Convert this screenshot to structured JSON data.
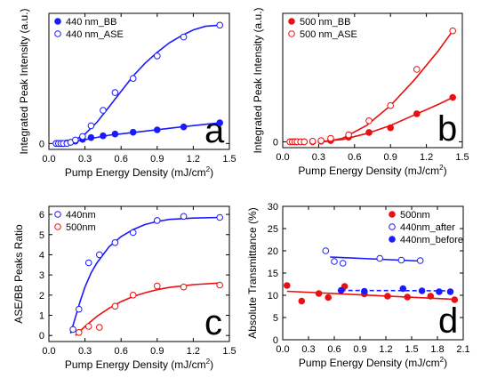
{
  "chart_data": [
    {
      "type": "scatter",
      "panel_letter": "a",
      "xlabel": "Pump Energy Density (mJ/cm",
      "xlabel_sup": "2",
      "xlabel_end": ")",
      "ylabel": "Integrated Peak Intensity (a.u.)",
      "xlim": [
        0,
        1.5
      ],
      "ylim": [
        -0.05,
        1.1
      ],
      "x_ticks": [
        0.0,
        0.3,
        0.6,
        0.9,
        1.2,
        1.5
      ],
      "x_tick_labels": [
        "0.0",
        "0.3",
        "0.6",
        "0.9",
        "1.2",
        "1.5"
      ],
      "y_ticks": [
        0
      ],
      "y_tick_labels": [
        "0"
      ],
      "legend_position": "top-left",
      "series": [
        {
          "name": "440 nm_BB",
          "color": "#1a1aff",
          "marker": "filled",
          "x": [
            0.06,
            0.08,
            0.1,
            0.12,
            0.15,
            0.18,
            0.22,
            0.28,
            0.35,
            0.45,
            0.55,
            0.7,
            0.9,
            1.12,
            1.42
          ],
          "y": [
            0.0,
            0.0,
            0.0,
            0.0,
            0.005,
            0.01,
            0.02,
            0.035,
            0.05,
            0.065,
            0.08,
            0.095,
            0.115,
            0.14,
            0.175
          ],
          "fit": [
            [
              0.05,
              0.0
            ],
            [
              0.2,
              0.015
            ],
            [
              0.5,
              0.07
            ],
            [
              0.8,
              0.105
            ],
            [
              1.1,
              0.14
            ],
            [
              1.42,
              0.175
            ]
          ]
        },
        {
          "name": "440 nm_ASE",
          "color": "#1a1aff",
          "marker": "open",
          "x": [
            0.06,
            0.08,
            0.1,
            0.12,
            0.15,
            0.18,
            0.22,
            0.28,
            0.35,
            0.45,
            0.55,
            0.7,
            0.9,
            1.12,
            1.42
          ],
          "y": [
            0.0,
            0.0,
            0.0,
            0.0,
            0.0,
            0.01,
            0.03,
            0.06,
            0.15,
            0.28,
            0.43,
            0.55,
            0.74,
            0.9,
            1.0
          ],
          "fit": [
            [
              0.1,
              0.0
            ],
            [
              0.2,
              0.02
            ],
            [
              0.3,
              0.08
            ],
            [
              0.4,
              0.18
            ],
            [
              0.5,
              0.31
            ],
            [
              0.6,
              0.44
            ],
            [
              0.7,
              0.57
            ],
            [
              0.8,
              0.68
            ],
            [
              0.9,
              0.77
            ],
            [
              1.0,
              0.85
            ],
            [
              1.1,
              0.91
            ],
            [
              1.2,
              0.96
            ],
            [
              1.3,
              0.99
            ],
            [
              1.42,
              1.0
            ]
          ]
        }
      ]
    },
    {
      "type": "scatter",
      "panel_letter": "b",
      "xlabel": "Pump Energy Density (mJ/cm",
      "xlabel_sup": "2",
      "xlabel_end": ")",
      "ylabel": "Integrated Peak Intensity (a.u.)",
      "xlim": [
        0,
        1.5
      ],
      "ylim": [
        -0.05,
        1.1
      ],
      "x_ticks": [
        0.0,
        0.3,
        0.6,
        0.9,
        1.2,
        1.5
      ],
      "x_tick_labels": [
        "0.0",
        "0.3",
        "0.6",
        "0.9",
        "1.2",
        "1.5"
      ],
      "y_ticks": [
        0
      ],
      "y_tick_labels": [
        "0"
      ],
      "legend_position": "top-left",
      "series": [
        {
          "name": "500 nm_BB",
          "color": "#e81010",
          "marker": "filled",
          "x": [
            0.06,
            0.08,
            0.1,
            0.12,
            0.15,
            0.18,
            0.25,
            0.32,
            0.4,
            0.55,
            0.72,
            0.9,
            1.12,
            1.42
          ],
          "y": [
            0.0,
            0.0,
            0.0,
            0.0,
            0.0,
            0.0,
            0.0,
            0.005,
            0.01,
            0.04,
            0.08,
            0.12,
            0.24,
            0.38
          ],
          "fit": [
            [
              0.3,
              0.0
            ],
            [
              0.5,
              0.02
            ],
            [
              0.7,
              0.07
            ],
            [
              0.9,
              0.14
            ],
            [
              1.1,
              0.23
            ],
            [
              1.3,
              0.32
            ],
            [
              1.42,
              0.38
            ]
          ]
        },
        {
          "name": "500 nm_ASE",
          "color": "#e81010",
          "marker": "open",
          "x": [
            0.06,
            0.08,
            0.1,
            0.12,
            0.15,
            0.18,
            0.25,
            0.32,
            0.4,
            0.55,
            0.72,
            0.9,
            1.12,
            1.42
          ],
          "y": [
            0.0,
            0.0,
            0.0,
            0.0,
            0.0,
            0.0,
            0.005,
            0.01,
            0.03,
            0.06,
            0.18,
            0.31,
            0.62,
            0.95
          ],
          "fit": [
            [
              0.35,
              0.0
            ],
            [
              0.5,
              0.03
            ],
            [
              0.7,
              0.14
            ],
            [
              0.9,
              0.31
            ],
            [
              1.1,
              0.53
            ],
            [
              1.3,
              0.78
            ],
            [
              1.42,
              0.95
            ]
          ]
        }
      ]
    },
    {
      "type": "scatter",
      "panel_letter": "c",
      "xlabel": "Pump Energy Density (mJ/cm",
      "xlabel_sup": "2",
      "xlabel_end": ")",
      "ylabel": "ASE/BB Peaks Ratio",
      "xlim": [
        0,
        1.5
      ],
      "ylim": [
        -0.3,
        6.4
      ],
      "x_ticks": [
        0.0,
        0.3,
        0.6,
        0.9,
        1.2,
        1.5
      ],
      "x_tick_labels": [
        "0.0",
        "0.3",
        "0.6",
        "0.9",
        "1.2",
        "1.5"
      ],
      "y_ticks": [
        0,
        1,
        2,
        3,
        4,
        5,
        6
      ],
      "y_tick_labels": [
        "0",
        "1",
        "2",
        "3",
        "4",
        "5",
        "6"
      ],
      "legend_position": "top-left",
      "series": [
        {
          "name": "440nm",
          "color": "#1a1aff",
          "marker": "open",
          "x": [
            0.2,
            0.25,
            0.33,
            0.42,
            0.55,
            0.7,
            0.9,
            1.12,
            1.42
          ],
          "y": [
            0.3,
            1.3,
            3.6,
            4.0,
            4.6,
            5.1,
            5.7,
            5.9,
            5.85
          ],
          "fit": [
            [
              0.18,
              0.1
            ],
            [
              0.22,
              0.9
            ],
            [
              0.26,
              1.7
            ],
            [
              0.3,
              2.4
            ],
            [
              0.35,
              3.1
            ],
            [
              0.4,
              3.6
            ],
            [
              0.5,
              4.4
            ],
            [
              0.6,
              4.9
            ],
            [
              0.7,
              5.25
            ],
            [
              0.8,
              5.5
            ],
            [
              0.9,
              5.65
            ],
            [
              1.0,
              5.75
            ],
            [
              1.2,
              5.82
            ],
            [
              1.42,
              5.85
            ]
          ]
        },
        {
          "name": "500nm",
          "color": "#e81010",
          "marker": "open",
          "x": [
            0.25,
            0.33,
            0.42,
            0.55,
            0.7,
            0.9,
            1.12,
            1.42
          ],
          "y": [
            0.15,
            0.45,
            0.4,
            1.45,
            2.0,
            2.45,
            2.4,
            2.5
          ],
          "fit": [
            [
              0.22,
              0.0
            ],
            [
              0.3,
              0.45
            ],
            [
              0.4,
              0.95
            ],
            [
              0.5,
              1.35
            ],
            [
              0.6,
              1.68
            ],
            [
              0.7,
              1.93
            ],
            [
              0.8,
              2.12
            ],
            [
              0.9,
              2.27
            ],
            [
              1.0,
              2.38
            ],
            [
              1.2,
              2.52
            ],
            [
              1.42,
              2.6
            ]
          ]
        }
      ]
    },
    {
      "type": "scatter",
      "panel_letter": "d",
      "xlabel": "Pump Energy Density (mJ/cm",
      "xlabel_sup": "2",
      "xlabel_end": ")",
      "ylabel": "Absolute Transmittance (%)",
      "xlim": [
        0,
        2.1
      ],
      "ylim": [
        0,
        30
      ],
      "x_ticks": [
        0.0,
        0.3,
        0.6,
        0.9,
        1.2,
        1.5,
        1.8,
        2.1
      ],
      "x_tick_labels": [
        "0.0",
        "0.3",
        "0.6",
        "0.9",
        "1.2",
        "1.5",
        "1.8",
        "2.1"
      ],
      "y_ticks": [
        0,
        5,
        10,
        15,
        20,
        25,
        30
      ],
      "y_tick_labels": [
        "0",
        "5",
        "10",
        "15",
        "20",
        "25",
        "30"
      ],
      "legend_position": "top-right",
      "series": [
        {
          "name": "500nm",
          "color": "#e81010",
          "marker": "filled",
          "x": [
            0.05,
            0.22,
            0.42,
            0.53,
            0.72,
            0.95,
            1.22,
            1.45,
            1.72,
            2.0
          ],
          "y": [
            12.2,
            8.7,
            10.4,
            9.5,
            12.0,
            10.3,
            9.8,
            9.6,
            9.8,
            9.0
          ],
          "fit": [
            [
              0.05,
              10.9
            ],
            [
              2.0,
              9.1
            ]
          ],
          "fit_style": "solid"
        },
        {
          "name": "440nm_after",
          "color": "#1a1aff",
          "marker": "open",
          "x": [
            0.5,
            0.6,
            0.7,
            1.13,
            1.38,
            1.6
          ],
          "y": [
            20.0,
            17.6,
            17.2,
            18.3,
            17.9,
            17.8
          ],
          "fit": [
            [
              0.55,
              18.6
            ],
            [
              1.6,
              17.7
            ]
          ],
          "fit_style": "solid"
        },
        {
          "name": "440nm_before",
          "color": "#1a1aff",
          "marker": "filled",
          "x": [
            0.68,
            0.95,
            1.4,
            1.62,
            1.82,
            1.95
          ],
          "y": [
            11.1,
            10.9,
            11.5,
            11.0,
            10.8,
            10.8
          ],
          "fit": [
            [
              0.68,
              11.1
            ],
            [
              1.98,
              11.0
            ]
          ],
          "fit_style": "dashed"
        }
      ]
    }
  ]
}
